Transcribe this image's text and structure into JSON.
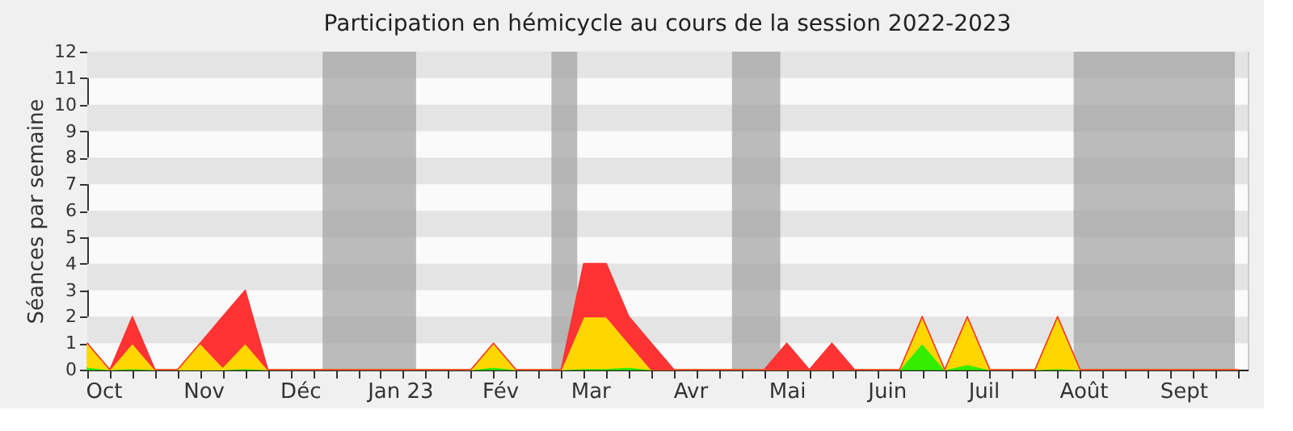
{
  "chart_data": {
    "type": "area",
    "title": "Participation en hémicycle au cours de la session 2022-2023",
    "ylabel": "Séances par semaine",
    "stacked": true,
    "x": [
      "2022-09-26",
      "2022-10-03",
      "2022-10-10",
      "2022-10-17",
      "2022-10-24",
      "2022-10-31",
      "2022-11-07",
      "2022-11-14",
      "2022-11-21",
      "2022-11-28",
      "2022-12-05",
      "2022-12-12",
      "2022-12-19",
      "2022-12-26",
      "2023-01-02",
      "2023-01-09",
      "2023-01-16",
      "2023-01-23",
      "2023-01-30",
      "2023-02-06",
      "2023-02-13",
      "2023-02-20",
      "2023-02-27",
      "2023-03-06",
      "2023-03-13",
      "2023-03-20",
      "2023-03-27",
      "2023-04-03",
      "2023-04-10",
      "2023-04-17",
      "2023-04-24",
      "2023-05-01",
      "2023-05-08",
      "2023-05-15",
      "2023-05-22",
      "2023-05-29",
      "2023-06-05",
      "2023-06-12",
      "2023-06-19",
      "2023-06-26",
      "2023-07-03",
      "2023-07-10",
      "2023-07-17",
      "2023-07-24",
      "2023-07-31",
      "2023-08-07",
      "2023-08-14",
      "2023-08-21",
      "2023-08-28",
      "2023-09-04",
      "2023-09-11",
      "2023-09-18"
    ],
    "series": [
      {
        "color": "#33ee00",
        "values": [
          0.1,
          0,
          0.05,
          0,
          0,
          0,
          0,
          0.05,
          0,
          0,
          0,
          0,
          0,
          0,
          0,
          0,
          0,
          0,
          0.1,
          0,
          0,
          0,
          0.05,
          0.05,
          0.1,
          0,
          0,
          0,
          0,
          0,
          0,
          0,
          0,
          0,
          0,
          0,
          0,
          1,
          0,
          0.2,
          0,
          0,
          0,
          0.05,
          0,
          0,
          0,
          0,
          0,
          0,
          0,
          0
        ]
      },
      {
        "color": "#ffd700",
        "values": [
          0.9,
          0,
          0.95,
          0,
          0,
          1,
          0.1,
          0.95,
          0,
          0,
          0,
          0,
          0,
          0,
          0,
          0,
          0,
          0,
          0.9,
          0,
          0,
          0,
          1.95,
          1.95,
          0.9,
          0,
          0,
          0,
          0,
          0,
          0,
          0,
          0,
          0,
          0,
          0,
          0,
          1,
          0,
          1.8,
          0,
          0,
          0,
          1.95,
          0,
          0,
          0,
          0,
          0,
          0,
          0,
          0
        ]
      },
      {
        "color": "#ff3333",
        "values": [
          0,
          0,
          1,
          0,
          0,
          0,
          1.9,
          2,
          0,
          0,
          0,
          0,
          0,
          0,
          0,
          0,
          0,
          0,
          0,
          0,
          0,
          0,
          2,
          2,
          1,
          1,
          0,
          0,
          0,
          0,
          0,
          1,
          0,
          1,
          0,
          0,
          0,
          0,
          0,
          0,
          0,
          0,
          0,
          0,
          0,
          0,
          0,
          0,
          0,
          0,
          0,
          0
        ]
      }
    ],
    "xlim": [
      "2022-09-26",
      "2023-09-21"
    ],
    "xticks": [
      {
        "value": "2022-09-26",
        "label": null
      },
      {
        "value": "2022-10-03",
        "label": null
      },
      {
        "value": "2022-10-01",
        "label": "Oct"
      },
      {
        "value": "2022-10-10",
        "label": null
      },
      {
        "value": "2022-10-17",
        "label": null
      },
      {
        "value": "2022-10-24",
        "label": null
      },
      {
        "value": "2022-10-31",
        "label": null
      },
      {
        "value": "2022-11-07",
        "label": null
      },
      {
        "value": "2022-11-01",
        "label": "Nov"
      },
      {
        "value": "2022-11-14",
        "label": null
      },
      {
        "value": "2022-11-21",
        "label": null
      },
      {
        "value": "2022-11-28",
        "label": null
      },
      {
        "value": "2022-12-05",
        "label": null
      },
      {
        "value": "2022-12-12",
        "label": null
      },
      {
        "value": "2022-12-01",
        "label": "Déc"
      },
      {
        "value": "2022-12-19",
        "label": null
      },
      {
        "value": "2022-12-26",
        "label": null
      },
      {
        "value": "2023-01-02",
        "label": null
      },
      {
        "value": "2023-01-09",
        "label": null
      },
      {
        "value": "2023-01-01",
        "label": "Jan 23"
      },
      {
        "value": "2023-01-16",
        "label": null
      },
      {
        "value": "2023-01-23",
        "label": null
      },
      {
        "value": "2023-01-30",
        "label": null
      },
      {
        "value": "2023-02-01",
        "label": "Fév"
      },
      {
        "value": "2023-02-06",
        "label": null
      },
      {
        "value": "2023-02-13",
        "label": null
      },
      {
        "value": "2023-02-20",
        "label": null
      },
      {
        "value": "2023-02-27",
        "label": null
      },
      {
        "value": "2023-03-01",
        "label": "Mar"
      },
      {
        "value": "2023-03-06",
        "label": null
      },
      {
        "value": "2023-03-13",
        "label": null
      },
      {
        "value": "2023-03-20",
        "label": null
      },
      {
        "value": "2023-03-27",
        "label": null
      },
      {
        "value": "2023-04-03",
        "label": null
      },
      {
        "value": "2023-04-01",
        "label": "Avr"
      },
      {
        "value": "2023-04-10",
        "label": null
      },
      {
        "value": "2023-04-17",
        "label": null
      },
      {
        "value": "2023-04-24",
        "label": null
      },
      {
        "value": "2023-05-01",
        "label": null
      },
      {
        "value": "2023-05-01T00:01",
        "label": "Mai"
      },
      {
        "value": "2023-05-08",
        "label": null
      },
      {
        "value": "2023-05-15",
        "label": null
      },
      {
        "value": "2023-05-22",
        "label": null
      },
      {
        "value": "2023-05-29",
        "label": null
      },
      {
        "value": "2023-06-05",
        "label": null
      },
      {
        "value": "2023-06-01",
        "label": "Juin"
      },
      {
        "value": "2023-06-12",
        "label": null
      },
      {
        "value": "2023-06-19",
        "label": null
      },
      {
        "value": "2023-06-26",
        "label": null
      },
      {
        "value": "2023-07-03",
        "label": null
      },
      {
        "value": "2023-07-01",
        "label": "Juil"
      },
      {
        "value": "2023-07-10",
        "label": null
      },
      {
        "value": "2023-07-17",
        "label": null
      },
      {
        "value": "2023-07-24",
        "label": null
      },
      {
        "value": "2023-07-31",
        "label": null
      },
      {
        "value": "2023-08-07",
        "label": null
      },
      {
        "value": "2023-08-01",
        "label": "Août"
      },
      {
        "value": "2023-08-14",
        "label": null
      },
      {
        "value": "2023-08-21",
        "label": null
      },
      {
        "value": "2023-08-28",
        "label": null
      },
      {
        "value": "2023-09-04",
        "label": null
      },
      {
        "value": "2023-09-11",
        "label": null
      },
      {
        "value": "2023-09-01",
        "label": "Sept"
      },
      {
        "value": "2023-09-18",
        "label": null
      }
    ],
    "ylim": [
      0,
      12
    ],
    "yticks": [
      0,
      1,
      2,
      3,
      4,
      5,
      6,
      7,
      8,
      9,
      10,
      11,
      12
    ],
    "bands": [
      {
        "axis": "y",
        "from": 1,
        "to": 2,
        "color": "#e4e4e4"
      },
      {
        "axis": "y",
        "from": 3,
        "to": 4,
        "color": "#e4e4e4"
      },
      {
        "axis": "y",
        "from": 5,
        "to": 6,
        "color": "#e4e4e4"
      },
      {
        "axis": "y",
        "from": 7,
        "to": 8,
        "color": "#e4e4e4"
      },
      {
        "axis": "y",
        "from": 9,
        "to": 10,
        "color": "#e4e4e4"
      },
      {
        "axis": "y",
        "from": 11,
        "to": 12,
        "color": "#e4e4e4"
      },
      {
        "axis": "x",
        "from": "2022-12-08",
        "to": "2023-01-06",
        "color": "#999999"
      },
      {
        "axis": "x",
        "from": "2023-02-17",
        "to": "2023-02-25",
        "color": "#999999"
      },
      {
        "axis": "x",
        "from": "2023-04-14",
        "to": "2023-04-29",
        "color": "#999999"
      },
      {
        "axis": "x",
        "from": "2023-07-29",
        "to": "2023-09-17",
        "color": "#999999"
      }
    ]
  }
}
